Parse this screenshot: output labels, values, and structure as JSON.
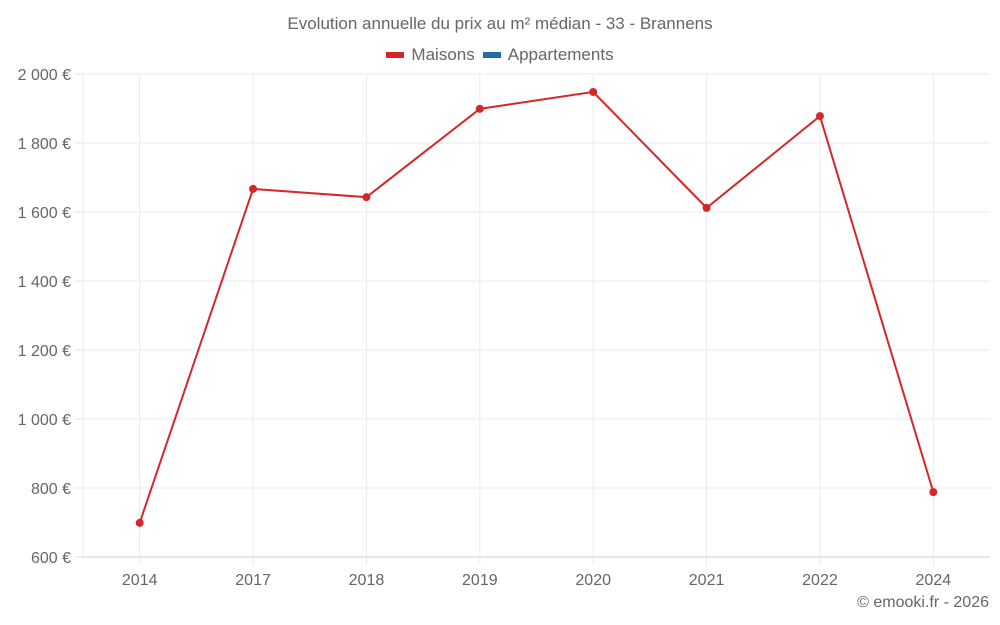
{
  "title": "Evolution annuelle du prix au m² médian - 33 - Brannens",
  "legend": [
    {
      "label": "Maisons",
      "color": "#d62728"
    },
    {
      "label": "Appartements",
      "color": "#1f6ea8"
    }
  ],
  "credit": "© emooki.fr - 2026",
  "chart_data": {
    "type": "line",
    "title": "Evolution annuelle du prix au m² médian - 33 - Brannens",
    "xlabel": "",
    "ylabel": "",
    "categories": [
      "2014",
      "2017",
      "2018",
      "2019",
      "2020",
      "2021",
      "2022",
      "2024"
    ],
    "series": [
      {
        "name": "Maisons",
        "color": "#d62728",
        "values": [
          699,
          1667,
          1643,
          1899,
          1948,
          1612,
          1878,
          788
        ]
      },
      {
        "name": "Appartements",
        "color": "#1f6ea8",
        "values": []
      }
    ],
    "ylim": [
      600,
      2000
    ],
    "yticks": [
      600,
      800,
      1000,
      1200,
      1400,
      1600,
      1800,
      2000
    ],
    "ytick_labels": [
      "600 €",
      "800 €",
      "1 000 €",
      "1 200 €",
      "1 400 €",
      "1 600 €",
      "1 800 €",
      "2 000 €"
    ],
    "grid": true,
    "legend_position": "top"
  }
}
